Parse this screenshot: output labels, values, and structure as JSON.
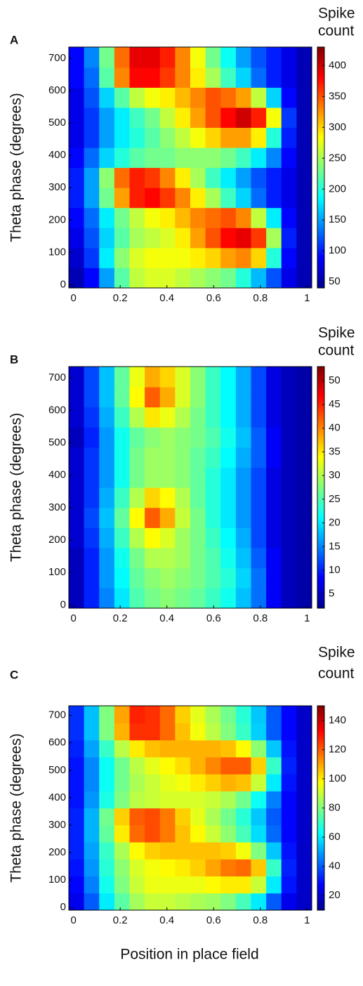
{
  "chart_data": [
    {
      "type": "heatmap",
      "label": "A",
      "colorbar_title": [
        "Spike",
        "count"
      ],
      "ylabel": "Theta phase (degrees)",
      "colormap": "jet",
      "xlim": [
        -0.02,
        1.02
      ],
      "ylim": [
        -10,
        735
      ],
      "xticks": [
        0,
        0.2,
        0.4,
        0.6,
        0.8,
        1
      ],
      "yticks": [
        0,
        100,
        200,
        300,
        400,
        500,
        600,
        700
      ],
      "clim": [
        40,
        430
      ],
      "cticks": [
        50,
        100,
        150,
        200,
        250,
        300,
        350,
        400
      ],
      "xbins": [
        -0.02,
        0.045,
        0.11,
        0.175,
        0.24,
        0.305,
        0.37,
        0.435,
        0.5,
        0.565,
        0.63,
        0.695,
        0.76,
        0.825,
        0.89,
        0.955,
        1.02
      ],
      "ybins": [
        -10,
        52,
        114,
        176,
        238,
        300,
        362,
        424,
        486,
        548,
        610,
        672,
        734
      ],
      "z": [
        [
          60,
          90,
          150,
          220,
          260,
          270,
          270,
          260,
          250,
          240,
          230,
          200,
          160,
          120,
          80,
          60
        ],
        [
          70,
          110,
          180,
          240,
          270,
          280,
          280,
          280,
          290,
          300,
          320,
          330,
          300,
          200,
          90,
          60
        ],
        [
          80,
          120,
          170,
          220,
          250,
          260,
          270,
          290,
          320,
          350,
          380,
          390,
          360,
          250,
          100,
          60
        ],
        [
          90,
          130,
          180,
          230,
          260,
          280,
          290,
          310,
          330,
          340,
          350,
          330,
          260,
          180,
          90,
          60
        ],
        [
          100,
          150,
          230,
          320,
          370,
          380,
          360,
          330,
          290,
          250,
          210,
          170,
          130,
          100,
          80,
          60
        ],
        [
          100,
          150,
          240,
          340,
          370,
          360,
          330,
          290,
          250,
          210,
          180,
          150,
          120,
          100,
          80,
          60
        ],
        [
          90,
          130,
          170,
          200,
          220,
          230,
          230,
          240,
          240,
          240,
          230,
          210,
          180,
          140,
          90,
          60
        ],
        [
          80,
          110,
          150,
          180,
          200,
          220,
          240,
          260,
          280,
          300,
          320,
          320,
          290,
          200,
          100,
          60
        ],
        [
          80,
          110,
          150,
          180,
          210,
          230,
          260,
          290,
          320,
          350,
          380,
          400,
          370,
          280,
          110,
          60
        ],
        [
          80,
          120,
          170,
          220,
          260,
          280,
          290,
          310,
          330,
          350,
          340,
          320,
          260,
          170,
          90,
          60
        ],
        [
          90,
          130,
          220,
          330,
          380,
          380,
          360,
          330,
          290,
          250,
          210,
          170,
          130,
          100,
          80,
          60
        ],
        [
          90,
          140,
          230,
          340,
          390,
          390,
          370,
          330,
          280,
          230,
          190,
          150,
          120,
          100,
          80,
          60
        ]
      ]
    },
    {
      "type": "heatmap",
      "label": "B",
      "colorbar_title": [
        "Spike",
        "count"
      ],
      "ylabel": "Theta phase (degrees)",
      "colormap": "jet",
      "xlim": [
        -0.02,
        1.02
      ],
      "ylim": [
        -10,
        735
      ],
      "xticks": [
        0,
        0.2,
        0.4,
        0.6,
        0.8,
        1
      ],
      "yticks": [
        0,
        100,
        200,
        300,
        400,
        500,
        600,
        700
      ],
      "clim": [
        2,
        53
      ],
      "cticks": [
        5,
        10,
        15,
        20,
        25,
        30,
        35,
        40,
        45,
        50
      ],
      "xbins": [
        -0.02,
        0.045,
        0.11,
        0.175,
        0.24,
        0.305,
        0.37,
        0.435,
        0.5,
        0.565,
        0.63,
        0.695,
        0.76,
        0.825,
        0.89,
        0.955,
        1.02
      ],
      "ybins": [
        -10,
        52,
        114,
        176,
        238,
        300,
        362,
        424,
        486,
        548,
        610,
        672,
        734
      ],
      "z": [
        [
          5,
          10,
          15,
          20,
          25,
          27,
          28,
          27,
          26,
          24,
          22,
          18,
          14,
          8,
          5,
          4
        ],
        [
          5,
          10,
          16,
          21,
          26,
          28,
          29,
          28,
          27,
          25,
          23,
          19,
          14,
          8,
          5,
          4
        ],
        [
          5,
          10,
          16,
          22,
          27,
          30,
          30,
          29,
          27,
          25,
          22,
          18,
          13,
          8,
          5,
          4
        ],
        [
          6,
          11,
          17,
          24,
          30,
          34,
          32,
          29,
          27,
          24,
          21,
          17,
          12,
          7,
          5,
          4
        ],
        [
          6,
          12,
          18,
          26,
          34,
          42,
          38,
          31,
          27,
          23,
          20,
          16,
          12,
          7,
          5,
          4
        ],
        [
          6,
          11,
          17,
          24,
          30,
          36,
          34,
          30,
          26,
          23,
          20,
          16,
          12,
          7,
          5,
          4
        ],
        [
          6,
          11,
          16,
          22,
          27,
          29,
          29,
          28,
          26,
          23,
          20,
          16,
          12,
          7,
          5,
          4
        ],
        [
          6,
          11,
          16,
          22,
          27,
          29,
          29,
          28,
          26,
          24,
          21,
          17,
          13,
          8,
          5,
          4
        ],
        [
          5,
          10,
          16,
          22,
          26,
          28,
          29,
          28,
          27,
          25,
          22,
          18,
          13,
          8,
          5,
          4
        ],
        [
          6,
          11,
          17,
          24,
          30,
          35,
          33,
          30,
          27,
          24,
          21,
          17,
          12,
          7,
          5,
          4
        ],
        [
          6,
          12,
          18,
          26,
          34,
          42,
          38,
          32,
          28,
          24,
          21,
          17,
          12,
          7,
          5,
          4
        ],
        [
          6,
          12,
          18,
          26,
          33,
          38,
          36,
          32,
          28,
          24,
          21,
          17,
          12,
          7,
          5,
          4
        ]
      ]
    },
    {
      "type": "heatmap",
      "label": "C",
      "colorbar_title": [
        "Spike",
        "count"
      ],
      "ylabel": "Theta phase (degrees)",
      "xlabel": "Position in place field",
      "colormap": "jet",
      "xlim": [
        -0.02,
        1.02
      ],
      "ylim": [
        -10,
        735
      ],
      "xticks": [
        0,
        0.2,
        0.4,
        0.6,
        0.8,
        1
      ],
      "yticks": [
        0,
        100,
        200,
        300,
        400,
        500,
        600,
        700
      ],
      "clim": [
        10,
        150
      ],
      "cticks": [
        20,
        40,
        60,
        80,
        100,
        120,
        140
      ],
      "xbins": [
        -0.02,
        0.045,
        0.11,
        0.175,
        0.24,
        0.305,
        0.37,
        0.435,
        0.5,
        0.565,
        0.63,
        0.695,
        0.76,
        0.825,
        0.89,
        0.955,
        1.02
      ],
      "ybins": [
        -10,
        52,
        114,
        176,
        238,
        300,
        362,
        424,
        486,
        548,
        610,
        672,
        734
      ],
      "z": [
        [
          25,
          40,
          60,
          75,
          85,
          90,
          90,
          88,
          86,
          84,
          80,
          72,
          60,
          40,
          25,
          20
        ],
        [
          28,
          45,
          65,
          80,
          90,
          95,
          95,
          95,
          95,
          98,
          100,
          100,
          90,
          60,
          30,
          20
        ],
        [
          30,
          48,
          68,
          82,
          92,
          96,
          98,
          100,
          104,
          110,
          116,
          118,
          105,
          70,
          32,
          20
        ],
        [
          32,
          50,
          70,
          86,
          98,
          104,
          106,
          106,
          106,
          106,
          104,
          96,
          80,
          55,
          30,
          20
        ],
        [
          32,
          52,
          76,
          100,
          118,
          122,
          116,
          106,
          98,
          90,
          82,
          72,
          58,
          42,
          28,
          20
        ],
        [
          32,
          52,
          78,
          104,
          120,
          122,
          116,
          104,
          94,
          86,
          78,
          68,
          55,
          40,
          28,
          20
        ],
        [
          30,
          48,
          66,
          80,
          88,
          90,
          92,
          92,
          92,
          90,
          86,
          78,
          64,
          45,
          28,
          20
        ],
        [
          30,
          46,
          64,
          78,
          86,
          90,
          94,
          96,
          100,
          104,
          108,
          106,
          90,
          60,
          30,
          20
        ],
        [
          30,
          46,
          64,
          78,
          88,
          94,
          98,
          102,
          108,
          114,
          120,
          120,
          104,
          70,
          32,
          20
        ],
        [
          32,
          50,
          70,
          88,
          100,
          106,
          108,
          108,
          108,
          108,
          106,
          98,
          82,
          55,
          30,
          20
        ],
        [
          34,
          54,
          80,
          108,
          126,
          126,
          118,
          106,
          96,
          88,
          80,
          70,
          56,
          40,
          28,
          20
        ],
        [
          34,
          54,
          80,
          110,
          128,
          126,
          118,
          104,
          94,
          86,
          78,
          68,
          55,
          40,
          28,
          20
        ]
      ]
    }
  ]
}
